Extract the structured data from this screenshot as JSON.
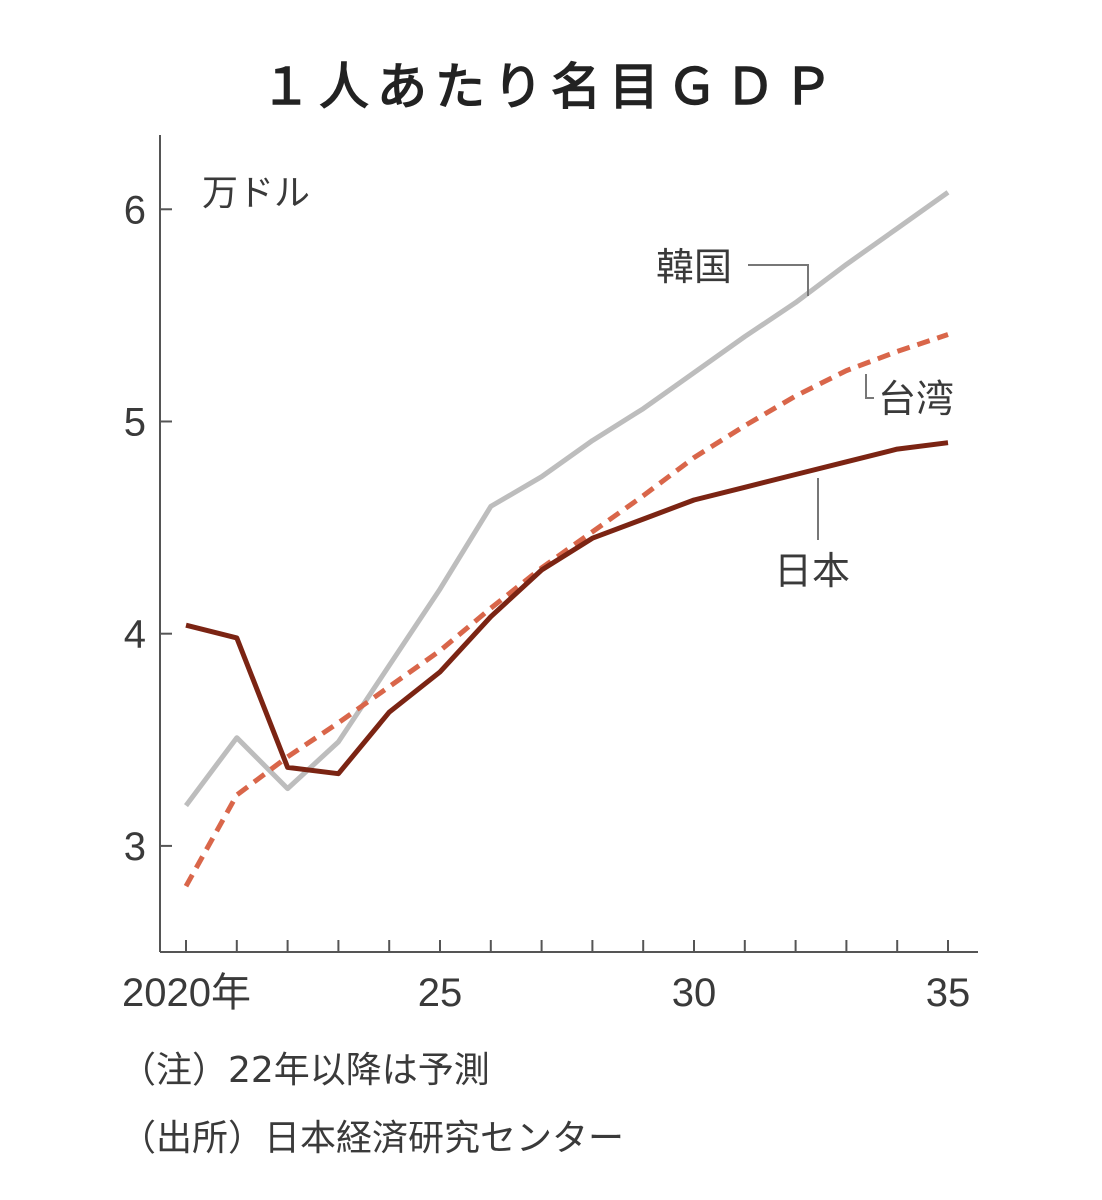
{
  "chart_data": {
    "type": "line",
    "title": "１人あたり名目ＧＤＰ",
    "unit_label": "万ドル",
    "x": [
      2020,
      2021,
      2022,
      2023,
      2024,
      2025,
      2026,
      2027,
      2028,
      2029,
      2030,
      2031,
      2032,
      2033,
      2034,
      2035
    ],
    "x_tick_labels": [
      {
        "x": 2020,
        "label": "2020年"
      },
      {
        "x": 2025,
        "label": "25"
      },
      {
        "x": 2030,
        "label": "30"
      },
      {
        "x": 2035,
        "label": "35"
      }
    ],
    "y_ticks": [
      3,
      4,
      5,
      6
    ],
    "ylim": [
      2.5,
      6.35
    ],
    "series": [
      {
        "name": "韓国",
        "color": "#bdbdbd",
        "style": "solid",
        "values": [
          3.19,
          3.51,
          3.27,
          3.49,
          3.85,
          4.21,
          4.6,
          4.74,
          4.91,
          5.06,
          5.23,
          5.4,
          5.56,
          5.74,
          5.91,
          6.08
        ]
      },
      {
        "name": "台湾",
        "color": "#d9664a",
        "style": "dashed",
        "values": [
          2.81,
          3.24,
          3.42,
          3.58,
          3.75,
          3.92,
          4.12,
          4.31,
          4.48,
          4.65,
          4.83,
          4.98,
          5.12,
          5.24,
          5.33,
          5.41
        ]
      },
      {
        "name": "日本",
        "color": "#7b2413",
        "style": "solid",
        "values": [
          4.04,
          3.98,
          3.37,
          3.34,
          3.63,
          3.82,
          4.08,
          4.3,
          4.45,
          4.54,
          4.63,
          4.69,
          4.75,
          4.81,
          4.87,
          4.9
        ]
      }
    ],
    "notes": [
      "（注）22年以降は予測",
      "（出所）日本経済研究センター"
    ]
  }
}
